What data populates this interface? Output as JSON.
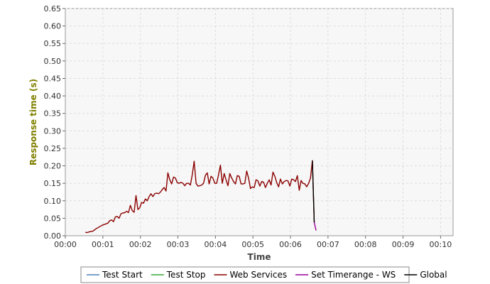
{
  "chart_data": {
    "type": "line",
    "xlabel": "Time",
    "ylabel": "Response time (s)",
    "xlim": [
      0,
      620
    ],
    "ylim": [
      0,
      0.65
    ],
    "x_ticks": [
      {
        "v": 0,
        "label": "00:00"
      },
      {
        "v": 60,
        "label": "00:01"
      },
      {
        "v": 120,
        "label": "00:02"
      },
      {
        "v": 180,
        "label": "00:03"
      },
      {
        "v": 240,
        "label": "00:04"
      },
      {
        "v": 300,
        "label": "00:05"
      },
      {
        "v": 360,
        "label": "00:06"
      },
      {
        "v": 420,
        "label": "00:07"
      },
      {
        "v": 480,
        "label": "00:08"
      },
      {
        "v": 540,
        "label": "00:09"
      },
      {
        "v": 600,
        "label": "00:10"
      }
    ],
    "y_ticks": [
      {
        "v": 0,
        "label": "0.00"
      },
      {
        "v": 0.05,
        "label": "0.05"
      },
      {
        "v": 0.1,
        "label": "0.10"
      },
      {
        "v": 0.15,
        "label": "0.15"
      },
      {
        "v": 0.2,
        "label": "0.20"
      },
      {
        "v": 0.25,
        "label": "0.25"
      },
      {
        "v": 0.3,
        "label": "0.30"
      },
      {
        "v": 0.35,
        "label": "0.35"
      },
      {
        "v": 0.4,
        "label": "0.40"
      },
      {
        "v": 0.45,
        "label": "0.45"
      },
      {
        "v": 0.5,
        "label": "0.50"
      },
      {
        "v": 0.55,
        "label": "0.55"
      },
      {
        "v": 0.6,
        "label": "0.60"
      },
      {
        "v": 0.65,
        "label": "0.65"
      }
    ],
    "grid": true,
    "legend_position": "bottom",
    "colors": {
      "plot_bg": "#f7f7f7",
      "grid": "#dddddd",
      "axis_title": "#666600",
      "ylabel": "#808000"
    },
    "series": [
      {
        "name": "Test Start",
        "color": "#4f81bd",
        "points": []
      },
      {
        "name": "Test Stop",
        "color": "#33aa33",
        "points": []
      },
      {
        "name": "Web Services",
        "color": "#8b0000",
        "points": [
          [
            32,
            0.01
          ],
          [
            35,
            0.009
          ],
          [
            38,
            0.011
          ],
          [
            41,
            0.012
          ],
          [
            44,
            0.013
          ],
          [
            47,
            0.017
          ],
          [
            50,
            0.021
          ],
          [
            53,
            0.024
          ],
          [
            56,
            0.027
          ],
          [
            59,
            0.03
          ],
          [
            62,
            0.032
          ],
          [
            65,
            0.034
          ],
          [
            68,
            0.036
          ],
          [
            71,
            0.043
          ],
          [
            74,
            0.045
          ],
          [
            77,
            0.04
          ],
          [
            80,
            0.054
          ],
          [
            83,
            0.055
          ],
          [
            86,
            0.05
          ],
          [
            89,
            0.063
          ],
          [
            92,
            0.065
          ],
          [
            95,
            0.066
          ],
          [
            98,
            0.07
          ],
          [
            101,
            0.066
          ],
          [
            104,
            0.087
          ],
          [
            107,
            0.072
          ],
          [
            110,
            0.067
          ],
          [
            113,
            0.115
          ],
          [
            116,
            0.075
          ],
          [
            119,
            0.08
          ],
          [
            122,
            0.095
          ],
          [
            125,
            0.093
          ],
          [
            128,
            0.105
          ],
          [
            131,
            0.1
          ],
          [
            134,
            0.112
          ],
          [
            137,
            0.12
          ],
          [
            140,
            0.112
          ],
          [
            143,
            0.12
          ],
          [
            146,
            0.122
          ],
          [
            149,
            0.12
          ],
          [
            152,
            0.125
          ],
          [
            155,
            0.132
          ],
          [
            158,
            0.138
          ],
          [
            161,
            0.128
          ],
          [
            164,
            0.18
          ],
          [
            167,
            0.16
          ],
          [
            170,
            0.148
          ],
          [
            173,
            0.168
          ],
          [
            176,
            0.165
          ],
          [
            179,
            0.152
          ],
          [
            182,
            0.15
          ],
          [
            185,
            0.153
          ],
          [
            188,
            0.15
          ],
          [
            191,
            0.143
          ],
          [
            194,
            0.15
          ],
          [
            197,
            0.15
          ],
          [
            200,
            0.145
          ],
          [
            203,
            0.175
          ],
          [
            206,
            0.213
          ],
          [
            209,
            0.15
          ],
          [
            212,
            0.142
          ],
          [
            215,
            0.143
          ],
          [
            218,
            0.145
          ],
          [
            221,
            0.15
          ],
          [
            224,
            0.173
          ],
          [
            227,
            0.18
          ],
          [
            230,
            0.148
          ],
          [
            233,
            0.17
          ],
          [
            236,
            0.165
          ],
          [
            239,
            0.15
          ],
          [
            242,
            0.15
          ],
          [
            245,
            0.175
          ],
          [
            248,
            0.202
          ],
          [
            251,
            0.15
          ],
          [
            254,
            0.178
          ],
          [
            257,
            0.16
          ],
          [
            260,
            0.143
          ],
          [
            263,
            0.178
          ],
          [
            266,
            0.165
          ],
          [
            269,
            0.155
          ],
          [
            272,
            0.148
          ],
          [
            275,
            0.172
          ],
          [
            278,
            0.17
          ],
          [
            281,
            0.148
          ],
          [
            284,
            0.148
          ],
          [
            287,
            0.15
          ],
          [
            290,
            0.185
          ],
          [
            293,
            0.165
          ],
          [
            296,
            0.135
          ],
          [
            299,
            0.14
          ],
          [
            302,
            0.138
          ],
          [
            305,
            0.16
          ],
          [
            308,
            0.157
          ],
          [
            311,
            0.142
          ],
          [
            314,
            0.155
          ],
          [
            317,
            0.153
          ],
          [
            320,
            0.138
          ],
          [
            323,
            0.15
          ],
          [
            326,
            0.16
          ],
          [
            329,
            0.145
          ],
          [
            332,
            0.182
          ],
          [
            335,
            0.17
          ],
          [
            338,
            0.152
          ],
          [
            341,
            0.14
          ],
          [
            344,
            0.162
          ],
          [
            347,
            0.148
          ],
          [
            350,
            0.155
          ],
          [
            353,
            0.158
          ],
          [
            356,
            0.157
          ],
          [
            359,
            0.142
          ],
          [
            362,
            0.162
          ],
          [
            365,
            0.16
          ],
          [
            368,
            0.155
          ],
          [
            371,
            0.172
          ],
          [
            374,
            0.13
          ],
          [
            377,
            0.158
          ],
          [
            380,
            0.15
          ],
          [
            383,
            0.148
          ],
          [
            386,
            0.14
          ],
          [
            389,
            0.15
          ],
          [
            392,
            0.165
          ],
          [
            395,
            0.215
          ],
          [
            398,
            0.038
          ]
        ]
      },
      {
        "name": "Set Timerange - WS",
        "color": "#990099",
        "points": [
          [
            398,
            0.038
          ],
          [
            401,
            0.015
          ]
        ]
      },
      {
        "name": "Global",
        "color": "#000000",
        "points": [
          [
            395,
            0.215
          ],
          [
            398,
            0.038
          ]
        ]
      }
    ]
  }
}
